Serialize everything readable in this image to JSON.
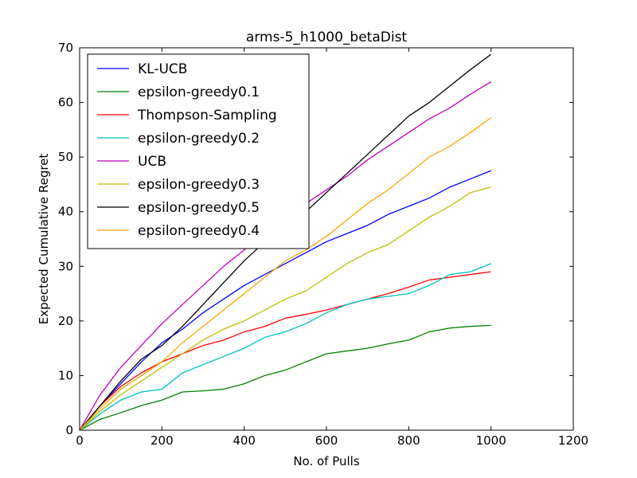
{
  "chart_data": {
    "type": "line",
    "title": "arms-5_h1000_betaDist",
    "xlabel": "No. of Pulls",
    "ylabel": "Expected Cumulative Regret",
    "xlim": [
      0,
      1200
    ],
    "ylim": [
      0,
      70
    ],
    "xticks": [
      "0",
      "200",
      "400",
      "600",
      "800",
      "1000",
      "1200"
    ],
    "yticks": [
      "0",
      "10",
      "20",
      "30",
      "40",
      "50",
      "60",
      "70"
    ],
    "grid": false,
    "legend_position": "top-left",
    "series": [
      {
        "name": "KL-UCB",
        "color": "#0000ff",
        "x": [
          0,
          50,
          100,
          150,
          200,
          250,
          300,
          350,
          400,
          450,
          500,
          550,
          600,
          650,
          700,
          750,
          800,
          850,
          900,
          950,
          1000
        ],
        "y": [
          0,
          4.5,
          8.5,
          12.5,
          16,
          18.5,
          21.5,
          24,
          26.5,
          28.5,
          30.5,
          32.5,
          34.5,
          36,
          37.5,
          39.5,
          41,
          42.5,
          44.5,
          46,
          47.5
        ]
      },
      {
        "name": "epsilon-greedy0.1",
        "color": "#008000",
        "x": [
          0,
          50,
          100,
          150,
          200,
          250,
          300,
          350,
          400,
          450,
          500,
          550,
          600,
          650,
          700,
          750,
          800,
          850,
          900,
          950,
          1000
        ],
        "y": [
          0,
          2,
          3.2,
          4.5,
          5.5,
          7,
          7.2,
          7.5,
          8.5,
          10,
          11,
          12.5,
          14,
          14.5,
          15,
          15.8,
          16.5,
          18,
          18.7,
          19,
          19.2
        ]
      },
      {
        "name": "Thompson-Sampling",
        "color": "#ff0000",
        "x": [
          0,
          50,
          100,
          150,
          200,
          250,
          300,
          350,
          400,
          450,
          500,
          550,
          600,
          650,
          700,
          750,
          800,
          850,
          900,
          950,
          1000
        ],
        "y": [
          0,
          4.5,
          8,
          10.5,
          12.5,
          14,
          15.5,
          16.5,
          18,
          19,
          20.5,
          21.2,
          22,
          23,
          24,
          25,
          26.2,
          27.5,
          28,
          28.5,
          29
        ]
      },
      {
        "name": "epsilon-greedy0.2",
        "color": "#00bfbf",
        "x": [
          0,
          50,
          100,
          150,
          200,
          250,
          300,
          350,
          400,
          450,
          500,
          550,
          600,
          650,
          700,
          750,
          800,
          850,
          900,
          950,
          1000
        ],
        "y": [
          0,
          3,
          5.5,
          7,
          7.5,
          10.5,
          12,
          13.5,
          15,
          17,
          18,
          19.5,
          21.5,
          23,
          24,
          24.5,
          25,
          26.5,
          28.5,
          29,
          30.5
        ]
      },
      {
        "name": "UCB",
        "color": "#bf00bf",
        "x": [
          0,
          50,
          100,
          150,
          200,
          250,
          300,
          350,
          400,
          450,
          500,
          550,
          600,
          650,
          700,
          750,
          800,
          850,
          900,
          950,
          1000
        ],
        "y": [
          0,
          6.5,
          11.5,
          15.5,
          19.5,
          23,
          26.5,
          30,
          33,
          36,
          39,
          41.5,
          44,
          46.5,
          49.5,
          52,
          54.5,
          57,
          59,
          61.5,
          63.8
        ]
      },
      {
        "name": "epsilon-greedy0.3",
        "color": "#bfbf00",
        "x": [
          0,
          50,
          100,
          150,
          200,
          250,
          300,
          350,
          400,
          450,
          500,
          550,
          600,
          650,
          700,
          750,
          800,
          850,
          900,
          950,
          1000
        ],
        "y": [
          0,
          3.5,
          6.5,
          9,
          11.5,
          14,
          16.5,
          18.5,
          20,
          22,
          24,
          25.5,
          28,
          30.5,
          32.5,
          34,
          36.5,
          39,
          41,
          43.5,
          44.5
        ]
      },
      {
        "name": "epsilon-greedy0.5",
        "color": "#000000",
        "x": [
          0,
          50,
          100,
          150,
          200,
          250,
          300,
          350,
          400,
          450,
          500,
          550,
          600,
          650,
          700,
          750,
          800,
          850,
          900,
          950,
          1000
        ],
        "y": [
          0,
          4.5,
          9,
          13,
          15.5,
          19,
          23,
          27,
          31,
          34.5,
          37,
          40,
          43.5,
          47,
          50.5,
          54,
          57.5,
          60,
          63,
          66,
          68.8
        ]
      },
      {
        "name": "epsilon-greedy0.4",
        "color": "#ffa500",
        "x": [
          0,
          50,
          100,
          150,
          200,
          250,
          300,
          350,
          400,
          450,
          500,
          550,
          600,
          650,
          700,
          750,
          800,
          850,
          900,
          950,
          1000
        ],
        "y": [
          0,
          4,
          7.5,
          10,
          12.5,
          16,
          19,
          22,
          25,
          28,
          31,
          33,
          35.5,
          38.5,
          41.5,
          44,
          47,
          50,
          52,
          54.5,
          57.2
        ]
      }
    ]
  }
}
